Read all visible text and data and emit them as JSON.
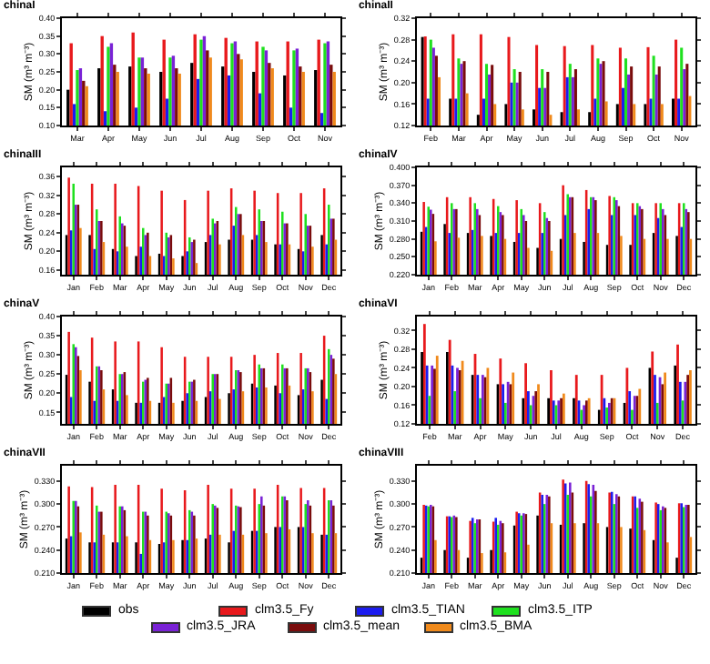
{
  "chart_data": [
    {
      "type": "bar",
      "title": "chinaI",
      "ylabel": "SM (m³ m⁻³)",
      "legend": "bottom",
      "categories": [
        "Mar",
        "Apr",
        "May",
        "Jun",
        "Jul",
        "Aug",
        "Sep",
        "Oct",
        "Nov"
      ],
      "ylim": [
        0.1,
        0.4
      ],
      "yticks": [
        {
          "value": 0.1,
          "label": "0.10"
        },
        {
          "value": 0.15,
          "label": "0.15"
        },
        {
          "value": 0.2,
          "label": "0.20"
        },
        {
          "value": 0.25,
          "label": "0.25"
        },
        {
          "value": 0.3,
          "label": "0.30"
        },
        {
          "value": 0.35,
          "label": "0.35"
        },
        {
          "value": 0.4,
          "label": "0.40"
        }
      ],
      "series": [
        {
          "name": "obs",
          "color": "#000000",
          "values": [
            0.2,
            0.26,
            0.265,
            0.25,
            0.275,
            0.265,
            0.25,
            0.24,
            0.255
          ]
        },
        {
          "name": "clm3.5_Fy",
          "color": "#e8191c",
          "values": [
            0.33,
            0.35,
            0.36,
            0.34,
            0.355,
            0.345,
            0.335,
            0.335,
            0.34
          ]
        },
        {
          "name": "clm3.5_TIAN",
          "color": "#1c1cf0",
          "values": [
            0.16,
            0.14,
            0.15,
            0.175,
            0.23,
            0.24,
            0.19,
            0.15,
            0.135
          ]
        },
        {
          "name": "clm3.5_ITP",
          "color": "#1fe01f",
          "values": [
            0.255,
            0.32,
            0.29,
            0.29,
            0.34,
            0.33,
            0.32,
            0.31,
            0.33
          ]
        },
        {
          "name": "clm3.5_JRA",
          "color": "#7a22d6",
          "values": [
            0.26,
            0.33,
            0.29,
            0.295,
            0.35,
            0.335,
            0.31,
            0.315,
            0.335
          ]
        },
        {
          "name": "clm3.5_mean",
          "color": "#7a0c0c",
          "values": [
            0.225,
            0.27,
            0.26,
            0.26,
            0.31,
            0.3,
            0.275,
            0.265,
            0.27
          ]
        },
        {
          "name": "clm3.5_BMA",
          "color": "#f08a1c",
          "values": [
            0.21,
            0.25,
            0.245,
            0.245,
            0.29,
            0.285,
            0.26,
            0.25,
            0.25
          ]
        }
      ]
    },
    {
      "type": "bar",
      "title": "chinaII",
      "ylabel": "SM (m³ m⁻³)",
      "categories": [
        "Feb",
        "Mar",
        "Apr",
        "May",
        "Jun",
        "Jul",
        "Aug",
        "Sep",
        "Oct",
        "Nov"
      ],
      "ylim": [
        0.12,
        0.32
      ],
      "yticks": [
        {
          "value": 0.12,
          "label": "0.12"
        },
        {
          "value": 0.16,
          "label": "0.16"
        },
        {
          "value": 0.2,
          "label": "0.20"
        },
        {
          "value": 0.24,
          "label": "0.24"
        },
        {
          "value": 0.28,
          "label": "0.28"
        },
        {
          "value": 0.32,
          "label": "0.32"
        }
      ],
      "series": [
        {
          "color": "#000000",
          "values": [
            0.285,
            0.17,
            0.14,
            0.16,
            0.15,
            0.145,
            0.145,
            0.16,
            0.16,
            0.17
          ]
        },
        {
          "color": "#e8191c",
          "values": [
            0.286,
            0.29,
            0.29,
            0.285,
            0.27,
            0.268,
            0.27,
            0.265,
            0.266,
            0.28
          ]
        },
        {
          "color": "#1c1cf0",
          "values": [
            0.17,
            0.17,
            0.17,
            0.2,
            0.19,
            0.21,
            0.17,
            0.19,
            0.17,
            0.17
          ]
        },
        {
          "color": "#1fe01f",
          "values": [
            0.28,
            0.245,
            0.235,
            0.225,
            0.225,
            0.235,
            0.245,
            0.245,
            0.25,
            0.265
          ]
        },
        {
          "color": "#7a22d6",
          "values": [
            0.265,
            0.235,
            0.215,
            0.2,
            0.19,
            0.21,
            0.235,
            0.215,
            0.215,
            0.225
          ]
        },
        {
          "color": "#7a0c0c",
          "values": [
            0.25,
            0.24,
            0.233,
            0.22,
            0.22,
            0.225,
            0.24,
            0.23,
            0.23,
            0.235
          ]
        },
        {
          "color": "#f08a1c",
          "values": [
            0.21,
            0.18,
            0.16,
            0.15,
            0.14,
            0.15,
            0.165,
            0.16,
            0.16,
            0.175
          ]
        }
      ]
    },
    {
      "type": "bar",
      "title": "chinaIII",
      "ylabel": "SM (m³ m⁻³)",
      "categories": [
        "Jan",
        "Feb",
        "Mar",
        "Apr",
        "May",
        "Jun",
        "Jul",
        "Aug",
        "Sep",
        "Oct",
        "Nov",
        "Dec"
      ],
      "ylim": [
        0.15,
        0.38
      ],
      "yticks": [
        {
          "value": 0.16,
          "label": "0.16"
        },
        {
          "value": 0.2,
          "label": "0.20"
        },
        {
          "value": 0.24,
          "label": "0.24"
        },
        {
          "value": 0.28,
          "label": "0.28"
        },
        {
          "value": 0.32,
          "label": "0.32"
        },
        {
          "value": 0.36,
          "label": "0.36"
        }
      ],
      "series": [
        {
          "color": "#000000",
          "values": [
            0.235,
            0.235,
            0.205,
            0.19,
            0.195,
            0.19,
            0.22,
            0.225,
            0.225,
            0.215,
            0.205,
            0.235
          ]
        },
        {
          "color": "#e8191c",
          "values": [
            0.358,
            0.345,
            0.345,
            0.34,
            0.33,
            0.31,
            0.33,
            0.335,
            0.33,
            0.325,
            0.325,
            0.335
          ]
        },
        {
          "color": "#1c1cf0",
          "values": [
            0.245,
            0.205,
            0.2,
            0.21,
            0.19,
            0.2,
            0.235,
            0.255,
            0.235,
            0.215,
            0.2,
            0.215
          ]
        },
        {
          "color": "#1fe01f",
          "values": [
            0.345,
            0.29,
            0.275,
            0.25,
            0.24,
            0.23,
            0.27,
            0.295,
            0.29,
            0.285,
            0.28,
            0.3
          ]
        },
        {
          "color": "#7a22d6",
          "values": [
            0.3,
            0.265,
            0.26,
            0.235,
            0.23,
            0.22,
            0.26,
            0.28,
            0.265,
            0.26,
            0.255,
            0.27
          ]
        },
        {
          "color": "#7a0c0c",
          "values": [
            0.3,
            0.265,
            0.255,
            0.24,
            0.235,
            0.225,
            0.265,
            0.28,
            0.265,
            0.26,
            0.255,
            0.27
          ]
        },
        {
          "color": "#f08a1c",
          "values": [
            0.25,
            0.22,
            0.21,
            0.19,
            0.185,
            0.175,
            0.215,
            0.235,
            0.22,
            0.215,
            0.21,
            0.225
          ]
        }
      ]
    },
    {
      "type": "bar",
      "title": "chinaIV",
      "ylabel": "SM (m³ m⁻³)",
      "categories": [
        "Jan",
        "Feb",
        "Mar",
        "Apr",
        "May",
        "Jun",
        "Jul",
        "Aug",
        "Sep",
        "Oct",
        "Nov",
        "Dec"
      ],
      "ylim": [
        0.22,
        0.4
      ],
      "yticks": [
        {
          "value": 0.22,
          "label": "0.220"
        },
        {
          "value": 0.25,
          "label": "0.250"
        },
        {
          "value": 0.28,
          "label": "0.280"
        },
        {
          "value": 0.31,
          "label": "0.310"
        },
        {
          "value": 0.34,
          "label": "0.340"
        },
        {
          "value": 0.37,
          "label": "0.370"
        },
        {
          "value": 0.4,
          "label": "0.400"
        }
      ],
      "series": [
        {
          "color": "#000000",
          "values": [
            0.292,
            0.305,
            0.29,
            0.285,
            0.275,
            0.265,
            0.28,
            0.275,
            0.27,
            0.27,
            0.29,
            0.285
          ]
        },
        {
          "color": "#e8191c",
          "values": [
            0.342,
            0.35,
            0.35,
            0.347,
            0.345,
            0.34,
            0.37,
            0.362,
            0.352,
            0.34,
            0.34,
            0.34
          ]
        },
        {
          "color": "#1c1cf0",
          "values": [
            0.3,
            0.29,
            0.295,
            0.29,
            0.29,
            0.29,
            0.32,
            0.33,
            0.32,
            0.32,
            0.315,
            0.3
          ]
        },
        {
          "color": "#1fe01f",
          "values": [
            0.334,
            0.34,
            0.34,
            0.335,
            0.33,
            0.325,
            0.355,
            0.35,
            0.35,
            0.34,
            0.34,
            0.34
          ]
        },
        {
          "color": "#7a22d6",
          "values": [
            0.329,
            0.33,
            0.33,
            0.325,
            0.32,
            0.315,
            0.35,
            0.35,
            0.345,
            0.335,
            0.33,
            0.33
          ]
        },
        {
          "color": "#7a0c0c",
          "values": [
            0.322,
            0.33,
            0.32,
            0.32,
            0.31,
            0.31,
            0.35,
            0.345,
            0.335,
            0.33,
            0.32,
            0.325
          ]
        },
        {
          "color": "#f08a1c",
          "values": [
            0.276,
            0.282,
            0.285,
            0.28,
            0.265,
            0.26,
            0.29,
            0.29,
            0.285,
            0.28,
            0.28,
            0.28
          ]
        }
      ]
    },
    {
      "type": "bar",
      "title": "chinaV",
      "ylabel": "SM (m³ m⁻³)",
      "categories": [
        "Jan",
        "Feb",
        "Mar",
        "Apr",
        "May",
        "Jun",
        "Jul",
        "Aug",
        "Sep",
        "Oct",
        "Nov",
        "Dec"
      ],
      "ylim": [
        0.12,
        0.4
      ],
      "yticks": [
        {
          "value": 0.15,
          "label": "0.15"
        },
        {
          "value": 0.2,
          "label": "0.20"
        },
        {
          "value": 0.25,
          "label": "0.25"
        },
        {
          "value": 0.3,
          "label": "0.30"
        },
        {
          "value": 0.35,
          "label": "0.35"
        },
        {
          "value": 0.4,
          "label": "0.40"
        }
      ],
      "series": [
        {
          "color": "#000000",
          "values": [
            0.248,
            0.23,
            0.21,
            0.175,
            0.175,
            0.18,
            0.19,
            0.2,
            0.225,
            0.22,
            0.195,
            0.235
          ]
        },
        {
          "color": "#e8191c",
          "values": [
            0.36,
            0.345,
            0.335,
            0.335,
            0.32,
            0.295,
            0.295,
            0.295,
            0.3,
            0.305,
            0.305,
            0.35
          ]
        },
        {
          "color": "#1c1cf0",
          "values": [
            0.19,
            0.18,
            0.18,
            0.175,
            0.19,
            0.2,
            0.205,
            0.21,
            0.215,
            0.2,
            0.21,
            0.185
          ]
        },
        {
          "color": "#1fe01f",
          "values": [
            0.328,
            0.27,
            0.25,
            0.23,
            0.225,
            0.23,
            0.25,
            0.26,
            0.275,
            0.275,
            0.265,
            0.315
          ]
        },
        {
          "color": "#7a22d6",
          "values": [
            0.32,
            0.27,
            0.25,
            0.235,
            0.225,
            0.23,
            0.25,
            0.26,
            0.265,
            0.265,
            0.265,
            0.3
          ]
        },
        {
          "color": "#7a0c0c",
          "values": [
            0.297,
            0.26,
            0.255,
            0.24,
            0.24,
            0.235,
            0.25,
            0.255,
            0.265,
            0.265,
            0.255,
            0.29
          ]
        },
        {
          "color": "#f08a1c",
          "values": [
            0.26,
            0.21,
            0.195,
            0.18,
            0.175,
            0.18,
            0.185,
            0.205,
            0.215,
            0.22,
            0.205,
            0.25
          ]
        }
      ]
    },
    {
      "type": "bar",
      "title": "chinaVI",
      "ylabel": "SM (m³ m⁻³)",
      "categories": [
        "Feb",
        "Mar",
        "Apr",
        "May",
        "Jun",
        "Jul",
        "Aug",
        "Sep",
        "Oct",
        "Nov",
        "Dec"
      ],
      "ylim": [
        0.12,
        0.35
      ],
      "yticks": [
        {
          "value": 0.12,
          "label": "0.12"
        },
        {
          "value": 0.16,
          "label": "0.16"
        },
        {
          "value": 0.2,
          "label": "0.20"
        },
        {
          "value": 0.24,
          "label": "0.24"
        },
        {
          "value": 0.28,
          "label": "0.28"
        },
        {
          "value": 0.32,
          "label": "0.32"
        }
      ],
      "series": [
        {
          "color": "#000000",
          "values": [
            0.274,
            0.274,
            0.225,
            0.205,
            0.175,
            0.175,
            0.175,
            0.15,
            0.165,
            0.24,
            0.245
          ]
        },
        {
          "color": "#e8191c",
          "values": [
            0.334,
            0.3,
            0.27,
            0.26,
            0.25,
            0.235,
            0.225,
            0.225,
            0.24,
            0.275,
            0.29
          ]
        },
        {
          "color": "#1c1cf0",
          "values": [
            0.245,
            0.245,
            0.225,
            0.205,
            0.19,
            0.17,
            0.17,
            0.175,
            0.19,
            0.225,
            0.21
          ]
        },
        {
          "color": "#1fe01f",
          "values": [
            0.18,
            0.19,
            0.175,
            0.165,
            0.16,
            0.16,
            0.15,
            0.155,
            0.15,
            0.165,
            0.17
          ]
        },
        {
          "color": "#7a22d6",
          "values": [
            0.245,
            0.24,
            0.225,
            0.21,
            0.18,
            0.17,
            0.16,
            0.165,
            0.18,
            0.22,
            0.21
          ]
        },
        {
          "color": "#7a0c0c",
          "values": [
            0.238,
            0.235,
            0.22,
            0.205,
            0.19,
            0.175,
            0.17,
            0.175,
            0.18,
            0.205,
            0.225
          ]
        },
        {
          "color": "#f08a1c",
          "values": [
            0.266,
            0.255,
            0.24,
            0.23,
            0.205,
            0.185,
            0.175,
            0.175,
            0.195,
            0.23,
            0.235
          ]
        }
      ]
    },
    {
      "type": "bar",
      "title": "chinaVII",
      "ylabel": "SM (m³ m⁻³)",
      "categories": [
        "Jan",
        "Feb",
        "Mar",
        "Apr",
        "May",
        "Jun",
        "Jul",
        "Aug",
        "Sep",
        "Oct",
        "Nov",
        "Dec"
      ],
      "ylim": [
        0.21,
        0.35
      ],
      "yticks": [
        {
          "value": 0.21,
          "label": "0.210"
        },
        {
          "value": 0.24,
          "label": "0.240"
        },
        {
          "value": 0.27,
          "label": "0.270"
        },
        {
          "value": 0.3,
          "label": "0.300"
        },
        {
          "value": 0.33,
          "label": "0.330"
        }
      ],
      "series": [
        {
          "color": "#000000",
          "values": [
            0.255,
            0.25,
            0.25,
            0.25,
            0.248,
            0.253,
            0.255,
            0.25,
            0.265,
            0.27,
            0.27,
            0.26
          ]
        },
        {
          "color": "#e8191c",
          "values": [
            0.323,
            0.322,
            0.325,
            0.325,
            0.32,
            0.318,
            0.325,
            0.32,
            0.32,
            0.325,
            0.321,
            0.321
          ]
        },
        {
          "color": "#1c1cf0",
          "values": [
            0.258,
            0.25,
            0.25,
            0.235,
            0.25,
            0.253,
            0.26,
            0.265,
            0.265,
            0.27,
            0.27,
            0.26
          ]
        },
        {
          "color": "#1fe01f",
          "values": [
            0.304,
            0.298,
            0.297,
            0.29,
            0.29,
            0.292,
            0.3,
            0.298,
            0.3,
            0.31,
            0.3,
            0.305
          ]
        },
        {
          "color": "#7a22d6",
          "values": [
            0.304,
            0.29,
            0.297,
            0.29,
            0.288,
            0.29,
            0.298,
            0.297,
            0.31,
            0.31,
            0.305,
            0.305
          ]
        },
        {
          "color": "#7a0c0c",
          "values": [
            0.297,
            0.29,
            0.292,
            0.285,
            0.285,
            0.285,
            0.295,
            0.296,
            0.298,
            0.305,
            0.298,
            0.298
          ]
        },
        {
          "color": "#f08a1c",
          "values": [
            0.263,
            0.26,
            0.258,
            0.253,
            0.253,
            0.255,
            0.26,
            0.26,
            0.262,
            0.267,
            0.262,
            0.262
          ]
        }
      ]
    },
    {
      "type": "bar",
      "title": "chinaVIII",
      "ylabel": "SM (m³ m⁻³)",
      "categories": [
        "Jan",
        "Feb",
        "Mar",
        "Apr",
        "May",
        "Jun",
        "Jul",
        "Aug",
        "Sep",
        "Oct",
        "Nov",
        "Dec"
      ],
      "ylim": [
        0.21,
        0.35
      ],
      "yticks": [
        {
          "value": 0.21,
          "label": "0.210"
        },
        {
          "value": 0.24,
          "label": "0.240"
        },
        {
          "value": 0.27,
          "label": "0.270"
        },
        {
          "value": 0.3,
          "label": "0.300"
        },
        {
          "value": 0.33,
          "label": "0.330"
        }
      ],
      "series": [
        {
          "color": "#000000",
          "values": [
            0.23,
            0.24,
            0.23,
            0.24,
            0.272,
            0.285,
            0.273,
            0.275,
            0.27,
            0.268,
            0.253,
            0.23
          ]
        },
        {
          "color": "#e8191c",
          "values": [
            0.299,
            0.284,
            0.278,
            0.277,
            0.29,
            0.315,
            0.332,
            0.33,
            0.315,
            0.31,
            0.302,
            0.301
          ]
        },
        {
          "color": "#1c1cf0",
          "values": [
            0.298,
            0.284,
            0.282,
            0.282,
            0.288,
            0.312,
            0.327,
            0.326,
            0.316,
            0.31,
            0.3,
            0.301
          ]
        },
        {
          "color": "#1fe01f",
          "values": [
            0.297,
            0.283,
            0.275,
            0.273,
            0.285,
            0.3,
            0.312,
            0.31,
            0.3,
            0.295,
            0.292,
            0.296
          ]
        },
        {
          "color": "#7a22d6",
          "values": [
            0.299,
            0.285,
            0.28,
            0.278,
            0.288,
            0.312,
            0.328,
            0.325,
            0.313,
            0.307,
            0.297,
            0.299
          ]
        },
        {
          "color": "#7a0c0c",
          "values": [
            0.297,
            0.283,
            0.28,
            0.275,
            0.287,
            0.31,
            0.315,
            0.317,
            0.31,
            0.303,
            0.295,
            0.299
          ]
        },
        {
          "color": "#f08a1c",
          "values": [
            0.253,
            0.24,
            0.236,
            0.237,
            0.247,
            0.275,
            0.275,
            0.275,
            0.27,
            0.266,
            0.25,
            0.257
          ]
        }
      ]
    }
  ]
}
